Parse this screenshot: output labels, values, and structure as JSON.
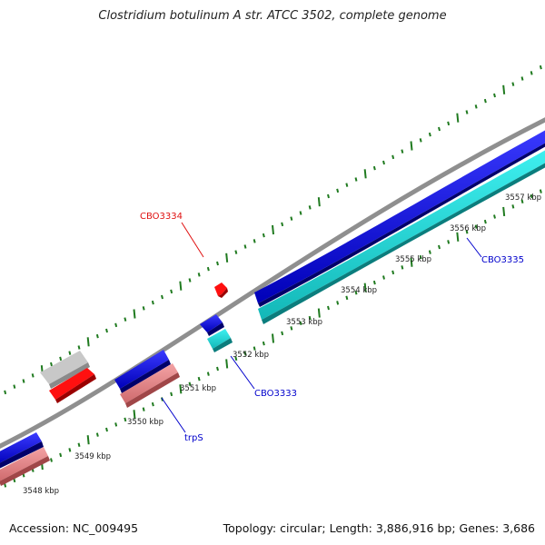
{
  "title": "Clostridium botulinum A str. ATCC 3502, complete genome",
  "footer": {
    "accession": "Accession: NC_009495",
    "summary": "Topology: circular; Length: 3,886,916 bp; Genes: 3,686"
  },
  "colors": {
    "backbone": "#8c8c8c",
    "tick": "#1f7a1f",
    "forward_cds": "#0a0ae6",
    "reverse_cds": "#1ee0e0",
    "rna": "#e8888a",
    "label_blue": "#0000cc",
    "label_red": "#e01010"
  },
  "scale": {
    "unit": "kbp",
    "ticks": [
      3548,
      3549,
      3550,
      3551,
      3552,
      3553,
      3554,
      3555,
      3556,
      3557
    ],
    "tick_labels": [
      "3548 kbp",
      "3549 kbp",
      "3550 kbp",
      "3551 kbp",
      "3552 kbp",
      "3553 kbp",
      "3554 kbp",
      "3555 kbp",
      "3556 kbp",
      "3557 kbp"
    ]
  },
  "gene_labels": [
    {
      "id": "cbo3334",
      "text": "CBO3334"
    },
    {
      "id": "cbo3335",
      "text": "CBO3335"
    },
    {
      "id": "cbo3333",
      "text": "CBO3333"
    },
    {
      "id": "trps",
      "text": "trpS"
    }
  ]
}
